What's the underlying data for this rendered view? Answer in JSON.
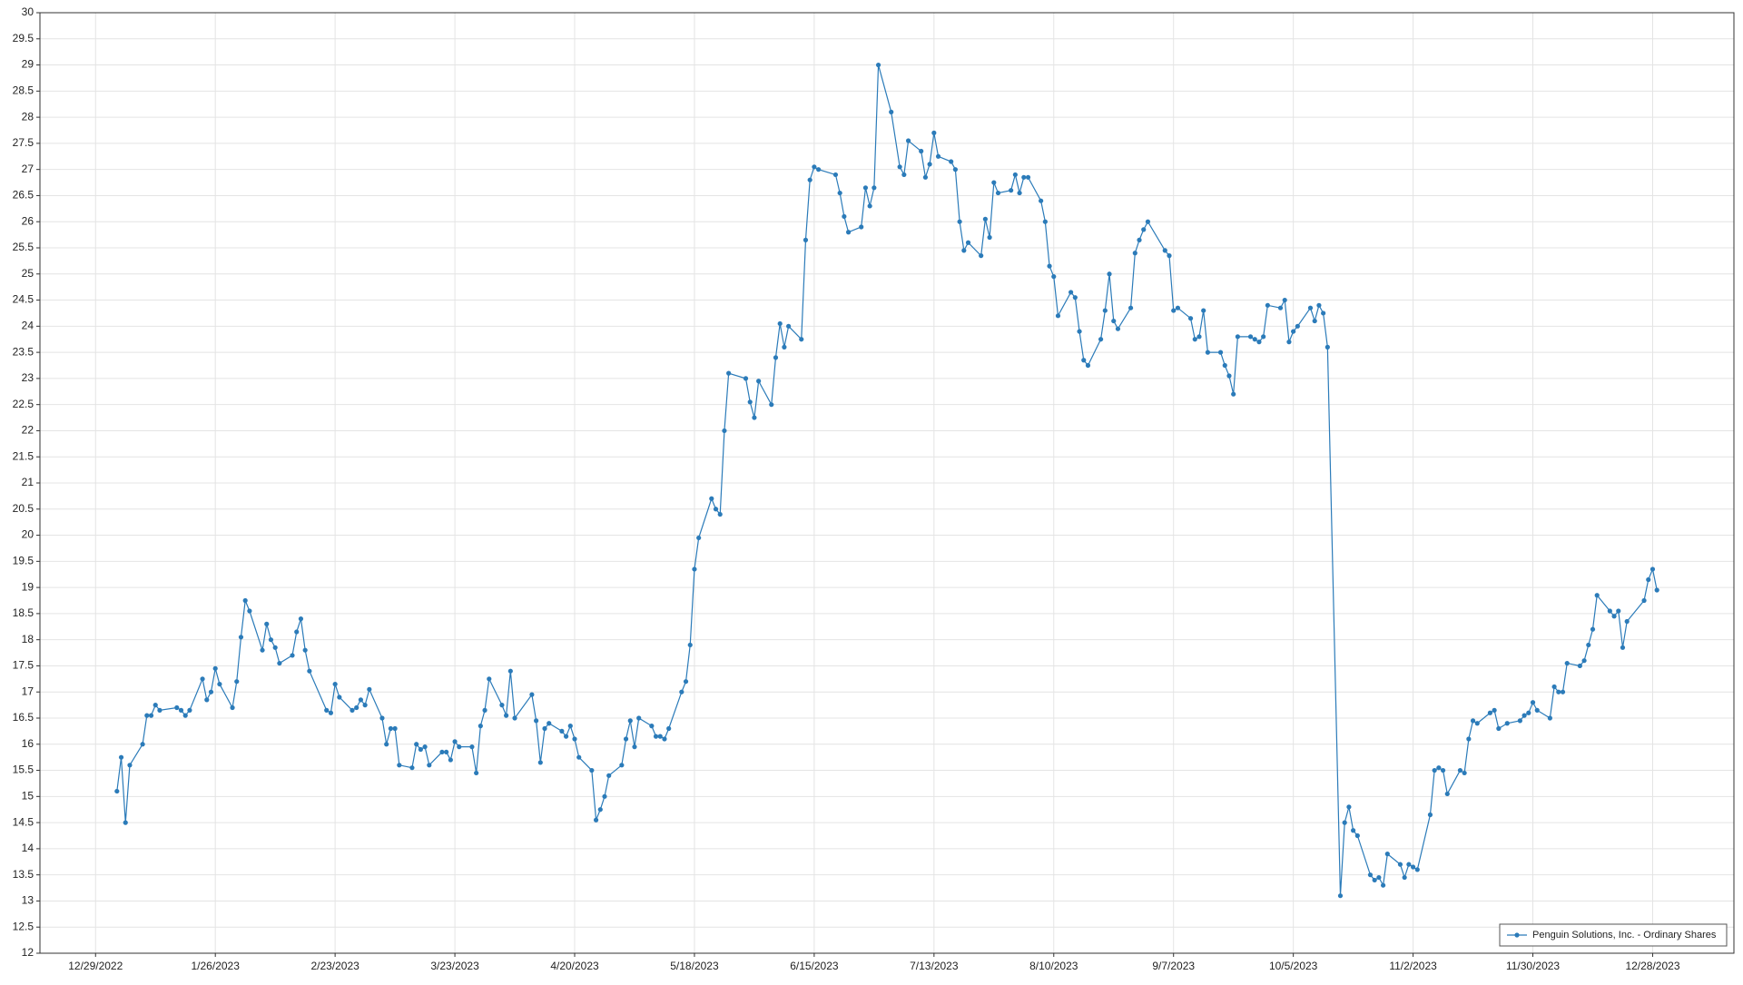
{
  "chart_data": {
    "type": "line",
    "x": [
      "1/3/2023",
      "1/4/2023",
      "1/5/2023",
      "1/6/2023",
      "1/9/2023",
      "1/10/2023",
      "1/11/2023",
      "1/12/2023",
      "1/13/2023",
      "1/17/2023",
      "1/18/2023",
      "1/19/2023",
      "1/20/2023",
      "1/23/2023",
      "1/24/2023",
      "1/25/2023",
      "1/26/2023",
      "1/27/2023",
      "1/30/2023",
      "1/31/2023",
      "2/1/2023",
      "2/2/2023",
      "2/3/2023",
      "2/6/2023",
      "2/7/2023",
      "2/8/2023",
      "2/9/2023",
      "2/10/2023",
      "2/13/2023",
      "2/14/2023",
      "2/15/2023",
      "2/16/2023",
      "2/17/2023",
      "2/21/2023",
      "2/22/2023",
      "2/23/2023",
      "2/24/2023",
      "2/27/2023",
      "2/28/2023",
      "3/1/2023",
      "3/2/2023",
      "3/3/2023",
      "3/6/2023",
      "3/7/2023",
      "3/8/2023",
      "3/9/2023",
      "3/10/2023",
      "3/13/2023",
      "3/14/2023",
      "3/15/2023",
      "3/16/2023",
      "3/17/2023",
      "3/20/2023",
      "3/21/2023",
      "3/22/2023",
      "3/23/2023",
      "3/24/2023",
      "3/27/2023",
      "3/28/2023",
      "3/29/2023",
      "3/30/2023",
      "3/31/2023",
      "4/3/2023",
      "4/4/2023",
      "4/5/2023",
      "4/6/2023",
      "4/10/2023",
      "4/11/2023",
      "4/12/2023",
      "4/13/2023",
      "4/14/2023",
      "4/17/2023",
      "4/18/2023",
      "4/19/2023",
      "4/20/2023",
      "4/21/2023",
      "4/24/2023",
      "4/25/2023",
      "4/26/2023",
      "4/27/2023",
      "4/28/2023",
      "5/1/2023",
      "5/2/2023",
      "5/3/2023",
      "5/4/2023",
      "5/5/2023",
      "5/8/2023",
      "5/9/2023",
      "5/10/2023",
      "5/11/2023",
      "5/12/2023",
      "5/15/2023",
      "5/16/2023",
      "5/17/2023",
      "5/18/2023",
      "5/19/2023",
      "5/22/2023",
      "5/23/2023",
      "5/24/2023",
      "5/25/2023",
      "5/26/2023",
      "5/30/2023",
      "5/31/2023",
      "6/1/2023",
      "6/2/2023",
      "6/5/2023",
      "6/6/2023",
      "6/7/2023",
      "6/8/2023",
      "6/9/2023",
      "6/12/2023",
      "6/13/2023",
      "6/14/2023",
      "6/15/2023",
      "6/16/2023",
      "6/20/2023",
      "6/21/2023",
      "6/22/2023",
      "6/23/2023",
      "6/26/2023",
      "6/27/2023",
      "6/28/2023",
      "6/29/2023",
      "6/30/2023",
      "7/3/2023",
      "7/5/2023",
      "7/6/2023",
      "7/7/2023",
      "7/10/2023",
      "7/11/2023",
      "7/12/2023",
      "7/13/2023",
      "7/14/2023",
      "7/17/2023",
      "7/18/2023",
      "7/19/2023",
      "7/20/2023",
      "7/21/2023",
      "7/24/2023",
      "7/25/2023",
      "7/26/2023",
      "7/27/2023",
      "7/28/2023",
      "7/31/2023",
      "8/1/2023",
      "8/2/2023",
      "8/3/2023",
      "8/4/2023",
      "8/7/2023",
      "8/8/2023",
      "8/9/2023",
      "8/10/2023",
      "8/11/2023",
      "8/14/2023",
      "8/15/2023",
      "8/16/2023",
      "8/17/2023",
      "8/18/2023",
      "8/21/2023",
      "8/22/2023",
      "8/23/2023",
      "8/24/2023",
      "8/25/2023",
      "8/28/2023",
      "8/29/2023",
      "8/30/2023",
      "8/31/2023",
      "9/1/2023",
      "9/5/2023",
      "9/6/2023",
      "9/7/2023",
      "9/8/2023",
      "9/11/2023",
      "9/12/2023",
      "9/13/2023",
      "9/14/2023",
      "9/15/2023",
      "9/18/2023",
      "9/19/2023",
      "9/20/2023",
      "9/21/2023",
      "9/22/2023",
      "9/25/2023",
      "9/26/2023",
      "9/27/2023",
      "9/28/2023",
      "9/29/2023",
      "10/2/2023",
      "10/3/2023",
      "10/4/2023",
      "10/5/2023",
      "10/6/2023",
      "10/9/2023",
      "10/10/2023",
      "10/11/2023",
      "10/12/2023",
      "10/13/2023",
      "10/16/2023",
      "10/17/2023",
      "10/18/2023",
      "10/19/2023",
      "10/20/2023",
      "10/23/2023",
      "10/24/2023",
      "10/25/2023",
      "10/26/2023",
      "10/27/2023",
      "10/30/2023",
      "10/31/2023",
      "11/1/2023",
      "11/2/2023",
      "11/3/2023",
      "11/6/2023",
      "11/7/2023",
      "11/8/2023",
      "11/9/2023",
      "11/10/2023",
      "11/13/2023",
      "11/14/2023",
      "11/15/2023",
      "11/16/2023",
      "11/17/2023",
      "11/20/2023",
      "11/21/2023",
      "11/22/2023",
      "11/24/2023",
      "11/27/2023",
      "11/28/2023",
      "11/29/2023",
      "11/30/2023",
      "12/1/2023",
      "12/4/2023",
      "12/5/2023",
      "12/6/2023",
      "12/7/2023",
      "12/8/2023",
      "12/11/2023",
      "12/12/2023",
      "12/13/2023",
      "12/14/2023",
      "12/15/2023",
      "12/18/2023",
      "12/19/2023",
      "12/20/2023",
      "12/21/2023",
      "12/22/2023",
      "12/26/2023",
      "12/27/2023",
      "12/28/2023",
      "12/29/2023"
    ],
    "series": [
      {
        "name": "Penguin Solutions, Inc. - Ordinary Shares",
        "color": "#2b7bb9",
        "values": [
          15.1,
          15.75,
          14.5,
          15.6,
          16.0,
          16.55,
          16.55,
          16.75,
          16.65,
          16.7,
          16.65,
          16.55,
          16.65,
          17.25,
          16.85,
          17.0,
          17.45,
          17.15,
          16.7,
          17.2,
          18.05,
          18.75,
          18.55,
          17.8,
          18.3,
          18.0,
          17.85,
          17.55,
          17.7,
          18.15,
          18.4,
          17.8,
          17.4,
          16.65,
          16.6,
          17.15,
          16.9,
          16.65,
          16.7,
          16.85,
          16.75,
          17.05,
          16.5,
          16.0,
          16.3,
          16.3,
          15.6,
          15.55,
          16.0,
          15.9,
          15.95,
          15.6,
          15.85,
          15.85,
          15.7,
          16.05,
          15.95,
          15.95,
          15.45,
          16.35,
          16.65,
          17.25,
          16.75,
          16.55,
          17.4,
          16.5,
          16.95,
          16.45,
          15.65,
          16.3,
          16.4,
          16.25,
          16.15,
          16.35,
          16.1,
          15.75,
          15.5,
          14.55,
          14.75,
          15.0,
          15.4,
          15.6,
          16.1,
          16.45,
          15.95,
          16.5,
          16.35,
          16.15,
          16.15,
          16.1,
          16.3,
          17.0,
          17.2,
          17.9,
          19.35,
          19.95,
          20.7,
          20.5,
          20.4,
          22.0,
          23.1,
          23.0,
          22.55,
          22.25,
          22.95,
          22.5,
          23.4,
          24.05,
          23.6,
          24.0,
          23.75,
          25.65,
          26.8,
          27.05,
          27.0,
          26.9,
          26.55,
          26.1,
          25.8,
          25.9,
          26.65,
          26.3,
          26.65,
          29.0,
          28.1,
          27.05,
          26.9,
          27.55,
          27.35,
          26.85,
          27.1,
          27.7,
          27.25,
          27.15,
          27.0,
          26.0,
          25.45,
          25.6,
          25.35,
          26.05,
          25.7,
          26.75,
          26.55,
          26.6,
          26.9,
          26.55,
          26.85,
          26.85,
          26.4,
          26.0,
          25.15,
          24.95,
          24.2,
          24.65,
          24.55,
          23.9,
          23.35,
          23.25,
          23.75,
          24.3,
          25.0,
          24.1,
          23.95,
          24.35,
          25.4,
          25.65,
          25.85,
          26.0,
          25.45,
          25.35,
          24.3,
          24.35,
          24.15,
          23.75,
          23.8,
          24.3,
          23.5,
          23.5,
          23.25,
          23.05,
          22.7,
          23.8,
          23.8,
          23.75,
          23.7,
          23.8,
          24.4,
          24.35,
          24.5,
          23.7,
          23.9,
          24.0,
          24.35,
          24.1,
          24.4,
          24.25,
          23.6,
          13.1,
          14.5,
          14.8,
          14.35,
          14.25,
          13.5,
          13.4,
          13.45,
          13.3,
          13.9,
          13.7,
          13.45,
          13.7,
          13.65,
          13.6,
          14.65,
          15.5,
          15.55,
          15.5,
          15.05,
          15.5,
          15.45,
          16.1,
          16.45,
          16.4,
          16.6,
          16.65,
          16.3,
          16.4,
          16.45,
          16.55,
          16.6,
          16.8,
          16.65,
          16.5,
          17.1,
          17.0,
          17.0,
          17.55,
          17.5,
          17.6,
          17.9,
          18.2,
          18.85,
          18.55,
          18.45,
          18.55,
          17.85,
          18.35,
          18.75,
          19.15,
          19.35,
          18.95
        ]
      }
    ],
    "xlim": [
      "12/16/2022",
      "1/16/2024"
    ],
    "xticks": [
      "12/29/2022",
      "1/26/2023",
      "2/23/2023",
      "3/23/2023",
      "4/20/2023",
      "5/18/2023",
      "6/15/2023",
      "7/13/2023",
      "8/10/2023",
      "9/7/2023",
      "10/5/2023",
      "11/2/2023",
      "11/30/2023",
      "12/28/2023"
    ],
    "ylim": [
      12,
      30
    ],
    "yticks": [
      12,
      12.5,
      13,
      13.5,
      14,
      14.5,
      15,
      15.5,
      16,
      16.5,
      17,
      17.5,
      18,
      18.5,
      19,
      19.5,
      20,
      20.5,
      21,
      21.5,
      22,
      22.5,
      23,
      23.5,
      24,
      24.5,
      25,
      25.5,
      26,
      26.5,
      27,
      27.5,
      28,
      28.5,
      29,
      29.5,
      30
    ],
    "grid": true,
    "legend": "lower right"
  }
}
